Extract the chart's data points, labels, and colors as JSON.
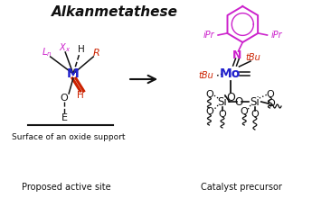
{
  "title": "Alkanmetathese",
  "left_label": "Surface of an oxide support",
  "left_sublabel": "Proposed active site",
  "right_label": "Catalyst precursor",
  "bg_color": "#ffffff",
  "magenta": "#cc22cc",
  "blue": "#2222cc",
  "red": "#cc2200",
  "black": "#111111",
  "fig_w": 3.45,
  "fig_h": 2.2,
  "dpi": 100
}
